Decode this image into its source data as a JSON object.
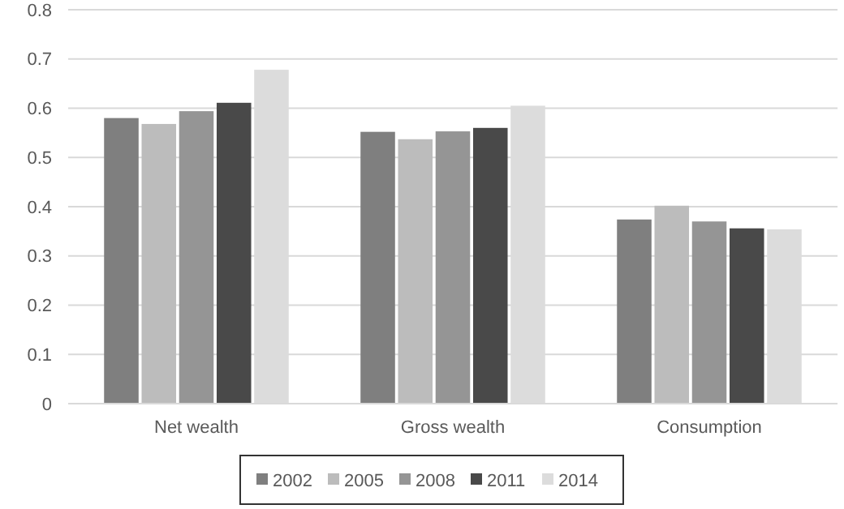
{
  "chart_data": {
    "type": "bar",
    "categories": [
      "Net wealth",
      "Gross wealth",
      "Consumption"
    ],
    "series": [
      {
        "name": "2002",
        "color": "#7f7f7f",
        "values": [
          0.58,
          0.552,
          0.374
        ]
      },
      {
        "name": "2005",
        "color": "#bcbcbc",
        "values": [
          0.568,
          0.537,
          0.402
        ]
      },
      {
        "name": "2008",
        "color": "#959595",
        "values": [
          0.594,
          0.553,
          0.37
        ]
      },
      {
        "name": "2011",
        "color": "#494949",
        "values": [
          0.611,
          0.56,
          0.356
        ]
      },
      {
        "name": "2014",
        "color": "#dcdcdc",
        "values": [
          0.678,
          0.605,
          0.354
        ]
      }
    ],
    "ylim": [
      0,
      0.8
    ],
    "yticks": [
      0,
      0.1,
      0.2,
      0.3,
      0.4,
      0.5,
      0.6,
      0.7,
      0.8
    ],
    "grid": "y",
    "legend": "bottom"
  }
}
